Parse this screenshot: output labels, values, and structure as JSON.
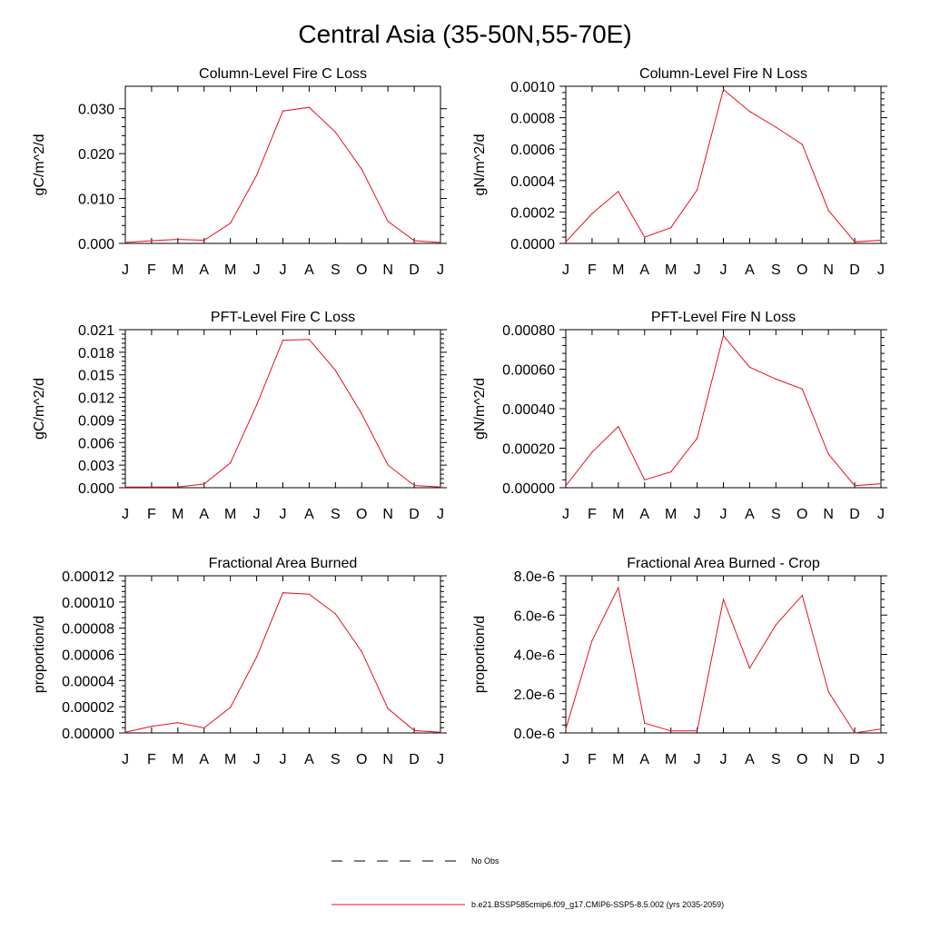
{
  "title": "Central Asia (35-50N,55-70E)",
  "line_color": "#e8101c",
  "legend": [
    {
      "label": "No Obs",
      "style": "dashed",
      "color": "#000000"
    },
    {
      "label": "b.e21.BSSP585cmip6.f09_g17.CMIP6-SSP5-8.5.002 (yrs 2035-2059)",
      "style": "solid",
      "color": "#e8101c"
    }
  ],
  "chart_data": [
    {
      "type": "line",
      "title": "Column-Level Fire C Loss",
      "ylabel": "gC/m^2/d",
      "xlabel": "",
      "categories": [
        "J",
        "F",
        "M",
        "A",
        "M",
        "J",
        "J",
        "A",
        "S",
        "O",
        "N",
        "D",
        "J"
      ],
      "ylim": [
        0,
        0.035
      ],
      "yticks": [
        "0.000",
        "0.010",
        "0.020",
        "0.030"
      ],
      "ytick_values": [
        0,
        0.01,
        0.02,
        0.03
      ],
      "series": [
        {
          "values": [
            0.0002,
            0.0006,
            0.0009,
            0.0007,
            0.0045,
            0.0152,
            0.0295,
            0.0303,
            0.0248,
            0.0165,
            0.0049,
            0.0006,
            0.0002
          ]
        }
      ]
    },
    {
      "type": "line",
      "title": "Column-Level Fire N Loss",
      "ylabel": "gN/m^2/d",
      "xlabel": "",
      "categories": [
        "J",
        "F",
        "M",
        "A",
        "M",
        "J",
        "J",
        "A",
        "S",
        "O",
        "N",
        "D",
        "J"
      ],
      "ylim": [
        0,
        0.001
      ],
      "yticks": [
        "0.0000",
        "0.0002",
        "0.0004",
        "0.0006",
        "0.0008",
        "0.0010"
      ],
      "ytick_values": [
        0,
        0.0002,
        0.0004,
        0.0006,
        0.0008,
        0.001
      ],
      "series": [
        {
          "values": [
            1e-05,
            0.00019,
            0.00033,
            4e-05,
            0.0001,
            0.00034,
            0.00098,
            0.00084,
            0.00074,
            0.00063,
            0.00021,
            1e-05,
            2e-05
          ]
        }
      ]
    },
    {
      "type": "line",
      "title": "PFT-Level Fire C Loss",
      "ylabel": "gC/m^2/d",
      "xlabel": "",
      "categories": [
        "J",
        "F",
        "M",
        "A",
        "M",
        "J",
        "J",
        "A",
        "S",
        "O",
        "N",
        "D",
        "J"
      ],
      "ylim": [
        0,
        0.021
      ],
      "yticks": [
        "0.000",
        "0.003",
        "0.006",
        "0.009",
        "0.012",
        "0.015",
        "0.018",
        "0.021"
      ],
      "ytick_values": [
        0,
        0.003,
        0.006,
        0.009,
        0.012,
        0.015,
        0.018,
        0.021
      ],
      "series": [
        {
          "values": [
            0.0001,
            0.0001,
            0.0001,
            0.0005,
            0.0033,
            0.011,
            0.0196,
            0.0197,
            0.0156,
            0.0098,
            0.003,
            0.0003,
            0.0001
          ]
        }
      ]
    },
    {
      "type": "line",
      "title": "PFT-Level Fire N Loss",
      "ylabel": "gN/m^2/d",
      "xlabel": "",
      "categories": [
        "J",
        "F",
        "M",
        "A",
        "M",
        "J",
        "J",
        "A",
        "S",
        "O",
        "N",
        "D",
        "J"
      ],
      "ylim": [
        0,
        0.0008
      ],
      "yticks": [
        "0.00000",
        "0.00020",
        "0.00040",
        "0.00060",
        "0.00080"
      ],
      "ytick_values": [
        0,
        0.0002,
        0.0004,
        0.0006,
        0.0008
      ],
      "series": [
        {
          "values": [
            1e-05,
            0.00018,
            0.00031,
            4e-05,
            8e-05,
            0.00025,
            0.00077,
            0.00061,
            0.00055,
            0.0005,
            0.00017,
            1e-05,
            2e-05
          ]
        }
      ]
    },
    {
      "type": "line",
      "title": "Fractional Area Burned",
      "ylabel": "proportion/d",
      "xlabel": "",
      "categories": [
        "J",
        "F",
        "M",
        "A",
        "M",
        "J",
        "J",
        "A",
        "S",
        "O",
        "N",
        "D",
        "J"
      ],
      "ylim": [
        0,
        0.00012
      ],
      "yticks": [
        "0.00000",
        "0.00002",
        "0.00004",
        "0.00006",
        "0.00008",
        "0.00010",
        "0.00012"
      ],
      "ytick_values": [
        0,
        2e-05,
        4e-05,
        6e-05,
        8e-05,
        0.0001,
        0.00012
      ],
      "series": [
        {
          "values": [
            5e-07,
            5e-06,
            7.8e-06,
            3.8e-06,
            1.95e-05,
            5.8e-05,
            0.000107,
            0.000106,
            9.1e-05,
            6.2e-05,
            1.85e-05,
            1.8e-06,
            5e-07
          ]
        }
      ]
    },
    {
      "type": "line",
      "title": "Fractional Area Burned - Crop",
      "ylabel": "proportion/d",
      "xlabel": "",
      "categories": [
        "J",
        "F",
        "M",
        "A",
        "M",
        "J",
        "J",
        "A",
        "S",
        "O",
        "N",
        "D",
        "J"
      ],
      "ylim": [
        0,
        8e-06
      ],
      "yticks": [
        "0.0e-6",
        "2.0e-6",
        "4.0e-6",
        "6.0e-6",
        "8.0e-6"
      ],
      "ytick_values": [
        0,
        2e-06,
        4e-06,
        6e-06,
        8e-06
      ],
      "series": [
        {
          "values": [
            2e-07,
            4.7e-06,
            7.4e-06,
            5e-07,
            1e-07,
            1e-07,
            6.8e-06,
            3.3e-06,
            5.5e-06,
            7e-06,
            2.1e-06,
            0.0,
            2e-07
          ]
        }
      ]
    }
  ]
}
